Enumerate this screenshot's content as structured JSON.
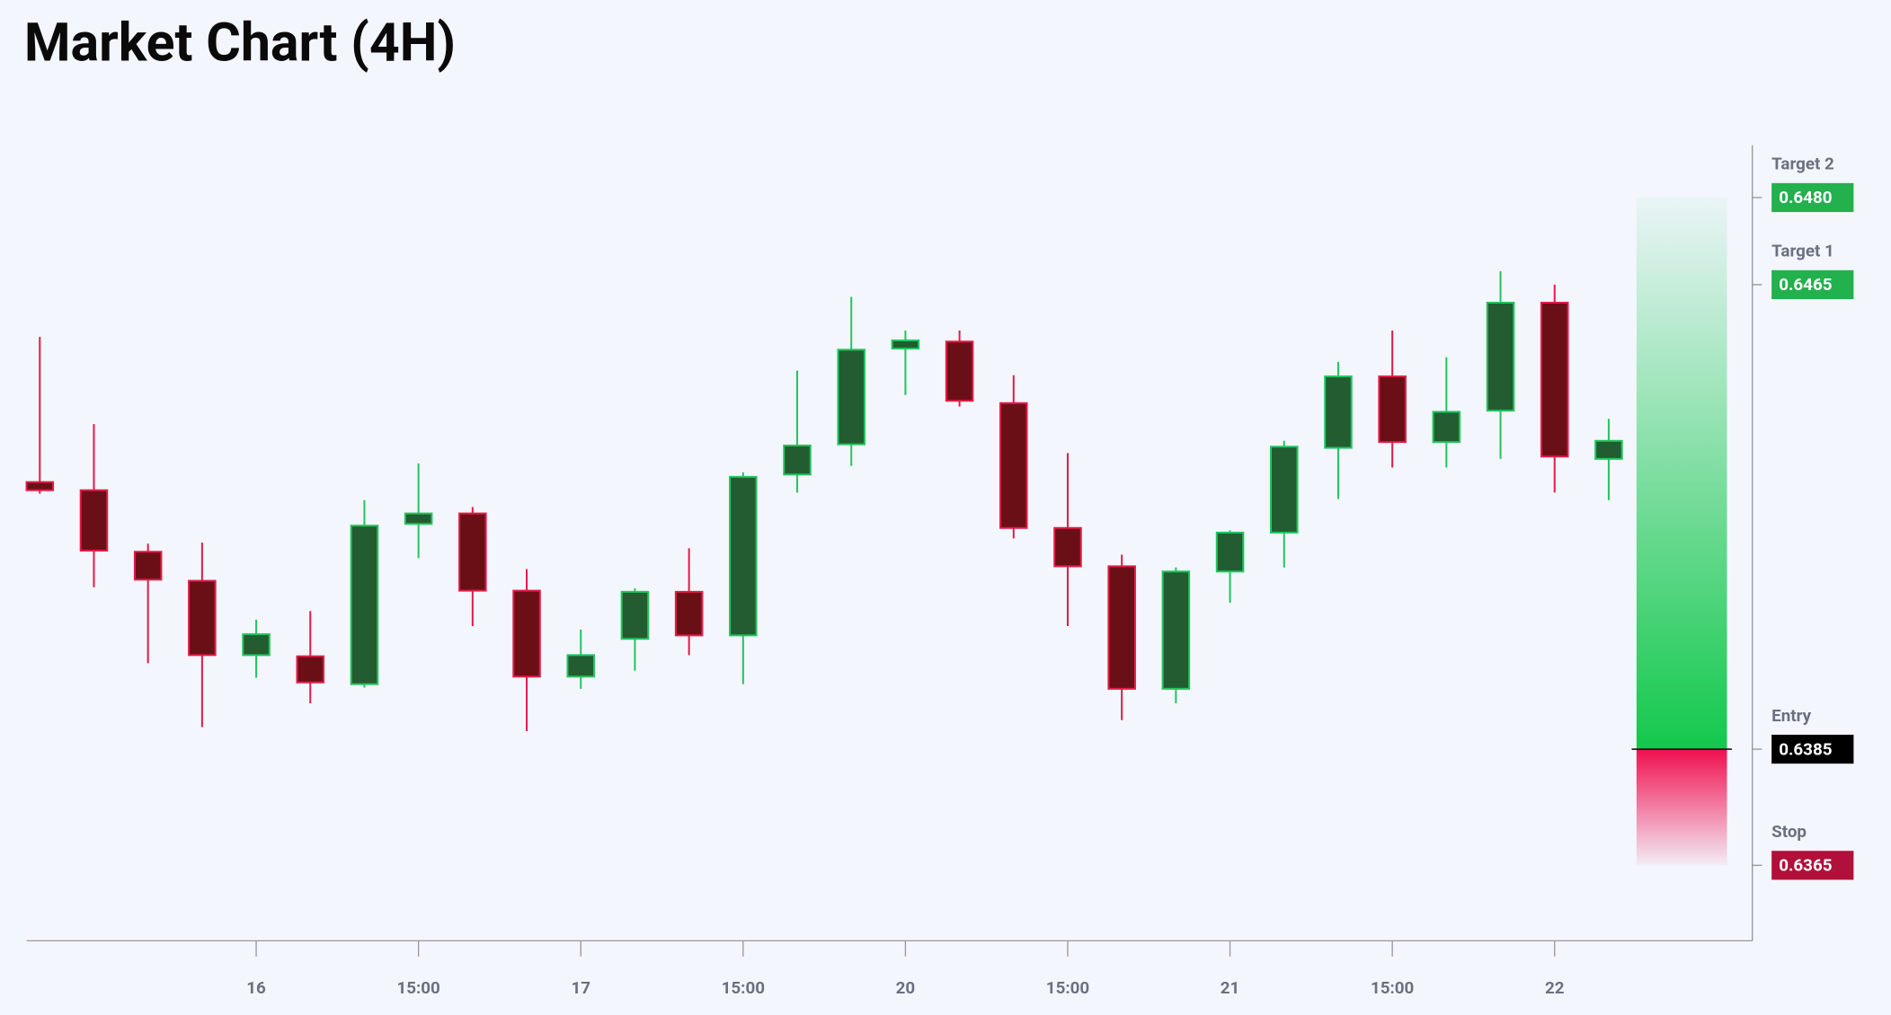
{
  "chart_data": {
    "type": "candlestick",
    "title": "Market Chart (4H)",
    "categories": [
      null,
      null,
      null,
      null,
      "16",
      null,
      null,
      "15:00",
      null,
      null,
      "17",
      null,
      null,
      "15:00",
      null,
      null,
      "20",
      null,
      null,
      "15:00",
      null,
      null,
      "21",
      null,
      null,
      "15:00",
      null,
      null,
      "22",
      null
    ],
    "open": [
      0.6431,
      0.64296,
      0.6419,
      0.6414,
      0.64012,
      0.6401,
      0.63962,
      0.64238,
      0.64256,
      0.64123,
      0.63975,
      0.6404,
      0.64121,
      0.64046,
      0.64323,
      0.64375,
      0.6454,
      0.64552,
      0.64446,
      0.64231,
      0.64165,
      0.63954,
      0.64156,
      0.64223,
      0.64369,
      0.64492,
      0.64379,
      0.64433,
      0.64619,
      0.6435
    ],
    "high": [
      0.6456,
      0.6441,
      0.64204,
      0.64206,
      0.64073,
      0.64088,
      0.64279,
      0.64342,
      0.64267,
      0.6416,
      0.64056,
      0.64127,
      0.64196,
      0.64327,
      0.64502,
      0.64629,
      0.64571,
      0.64571,
      0.64494,
      0.6436,
      0.64185,
      0.64163,
      0.64227,
      0.64381,
      0.64517,
      0.64571,
      0.64525,
      0.64673,
      0.6465,
      0.64419
    ],
    "low": [
      0.6429,
      0.64129,
      0.63998,
      0.63888,
      0.63973,
      0.63929,
      0.63956,
      0.64179,
      0.64062,
      0.63881,
      0.63954,
      0.63985,
      0.64012,
      0.63962,
      0.64292,
      0.64338,
      0.6446,
      0.6444,
      0.64213,
      0.64062,
      0.639,
      0.63929,
      0.64102,
      0.64163,
      0.64281,
      0.64335,
      0.64335,
      0.6435,
      0.64292,
      0.64279
    ],
    "close": [
      0.64296,
      0.64192,
      0.64142,
      0.64012,
      0.64048,
      0.63965,
      0.64235,
      0.64256,
      0.64123,
      0.63975,
      0.64012,
      0.64121,
      0.64046,
      0.64319,
      0.64373,
      0.64538,
      0.64554,
      0.6445,
      0.64231,
      0.64165,
      0.63954,
      0.64156,
      0.64223,
      0.64371,
      0.64492,
      0.64379,
      0.64431,
      0.64619,
      0.64354,
      0.64381
    ],
    "up_color": "#235c30",
    "up_border": "#22c55e",
    "down_color": "#6b0f17",
    "down_border": "#e11d48",
    "ylim": [
      0.6352,
      0.6489
    ],
    "levels": [
      {
        "name": "Target 2",
        "value": 0.648,
        "label": "0.6480",
        "color": "#22b14c"
      },
      {
        "name": "Target 1",
        "value": 0.6465,
        "label": "0.6465",
        "color": "#22b14c"
      },
      {
        "name": "Entry",
        "value": 0.6385,
        "label": "0.6385",
        "color": "#000000"
      },
      {
        "name": "Stop",
        "value": 0.6365,
        "label": "0.6365",
        "color": "#b0103a"
      }
    ]
  }
}
